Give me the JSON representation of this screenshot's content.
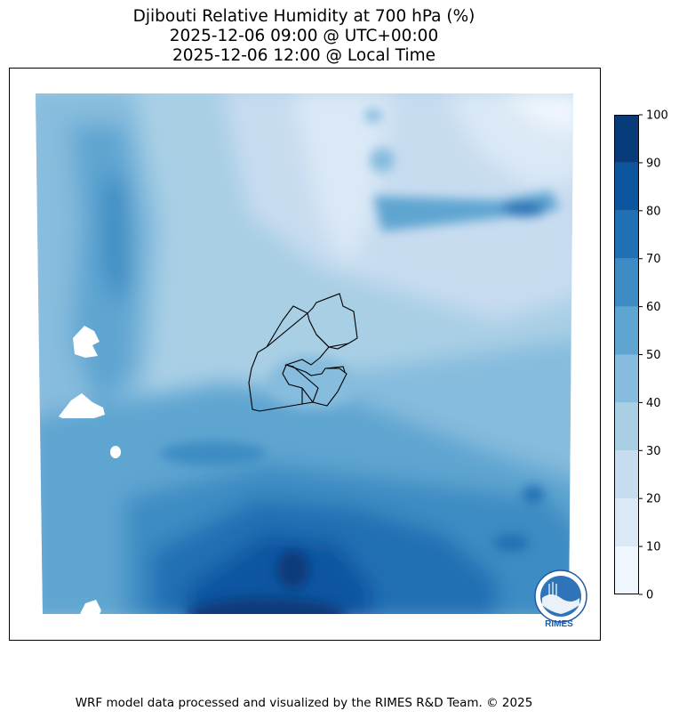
{
  "chart": {
    "title_lines": [
      "Djibouti Relative Humidity at 700 hPa (%)",
      "2025-12-06 09:00 @ UTC+00:00",
      "2025-12-06 12:00 @ Local Time"
    ],
    "footer": "WRF model data processed and visualized by the RIMES R&D Team. © 2025",
    "logo_text": "RIMES"
  },
  "chart_data": {
    "type": "heatmap",
    "title": "Djibouti Relative Humidity at 700 hPa (%)",
    "subtitle": [
      "2025-12-06 09:00 @ UTC+00:00",
      "2025-12-06 12:00 @ Local Time"
    ],
    "variable": "Relative Humidity at 700 hPa",
    "units": "%",
    "colorbar": {
      "levels": [
        0,
        10,
        20,
        30,
        40,
        50,
        60,
        70,
        80,
        90,
        100
      ],
      "tick_labels": [
        "0",
        "10",
        "20",
        "30",
        "40",
        "50",
        "60",
        "70",
        "80",
        "90",
        "100"
      ],
      "colors": [
        "#f0f6fd",
        "#dbe9f6",
        "#c8dcf0",
        "#a9cfe5",
        "#86bcdd",
        "#5ea5d1",
        "#3d8cc3",
        "#2270b4",
        "#0e55a0",
        "#083b7a"
      ]
    },
    "regions": [
      {
        "area": "northeast (upper right)",
        "range": "10-30"
      },
      {
        "area": "north-central",
        "range": "20-40"
      },
      {
        "area": "Djibouti",
        "range": "40-60"
      },
      {
        "area": "west",
        "range": "50-80"
      },
      {
        "area": "south",
        "range": "60-100"
      },
      {
        "area": "east band (upper right)",
        "range": "60-80"
      }
    ],
    "grid": false
  }
}
